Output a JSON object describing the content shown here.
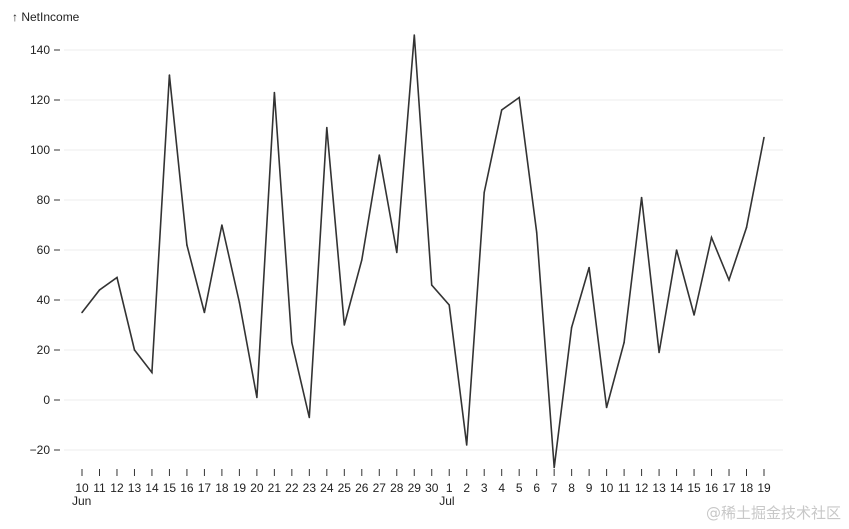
{
  "chart_data": {
    "type": "line",
    "ylabel": "↑ NetIncome",
    "xlabel": "",
    "ylim": [
      -28,
      148
    ],
    "y_ticks": [
      -20,
      0,
      20,
      40,
      60,
      80,
      100,
      120,
      140
    ],
    "grid": "horizontal",
    "line_color": "#333333",
    "x": [
      "2023-06-10",
      "2023-06-11",
      "2023-06-12",
      "2023-06-13",
      "2023-06-14",
      "2023-06-15",
      "2023-06-16",
      "2023-06-17",
      "2023-06-18",
      "2023-06-19",
      "2023-06-20",
      "2023-06-21",
      "2023-06-22",
      "2023-06-23",
      "2023-06-24",
      "2023-06-25",
      "2023-06-26",
      "2023-06-27",
      "2023-06-28",
      "2023-06-29",
      "2023-06-30",
      "2023-07-01",
      "2023-07-02",
      "2023-07-03",
      "2023-07-04",
      "2023-07-05",
      "2023-07-06",
      "2023-07-07",
      "2023-07-08",
      "2023-07-09",
      "2023-07-10",
      "2023-07-11",
      "2023-07-12",
      "2023-07-13",
      "2023-07-14",
      "2023-07-15",
      "2023-07-16",
      "2023-07-17",
      "2023-07-18",
      "2023-07-19"
    ],
    "x_tick_labels": [
      "10",
      "11",
      "12",
      "13",
      "14",
      "15",
      "16",
      "17",
      "18",
      "19",
      "20",
      "21",
      "22",
      "23",
      "24",
      "25",
      "26",
      "27",
      "28",
      "29",
      "30",
      "1",
      "2",
      "3",
      "4",
      "5",
      "6",
      "7",
      "8",
      "9",
      "10",
      "11",
      "12",
      "13",
      "14",
      "15",
      "16",
      "17",
      "18",
      "19"
    ],
    "month_labels": [
      {
        "index": 0,
        "label": "Jun"
      },
      {
        "index": 21,
        "label": "Jul"
      }
    ],
    "series": [
      {
        "values": [
          35,
          44,
          49,
          20,
          11,
          130,
          62,
          35,
          70,
          39,
          1,
          123,
          23,
          -7,
          109,
          30,
          56,
          98,
          59,
          146,
          46,
          38,
          -18,
          83,
          116,
          121,
          67,
          -27,
          29,
          53,
          -3,
          23,
          81,
          19,
          60,
          34,
          65,
          48,
          69,
          105
        ]
      }
    ]
  },
  "watermark": "@稀土掘金技术社区"
}
